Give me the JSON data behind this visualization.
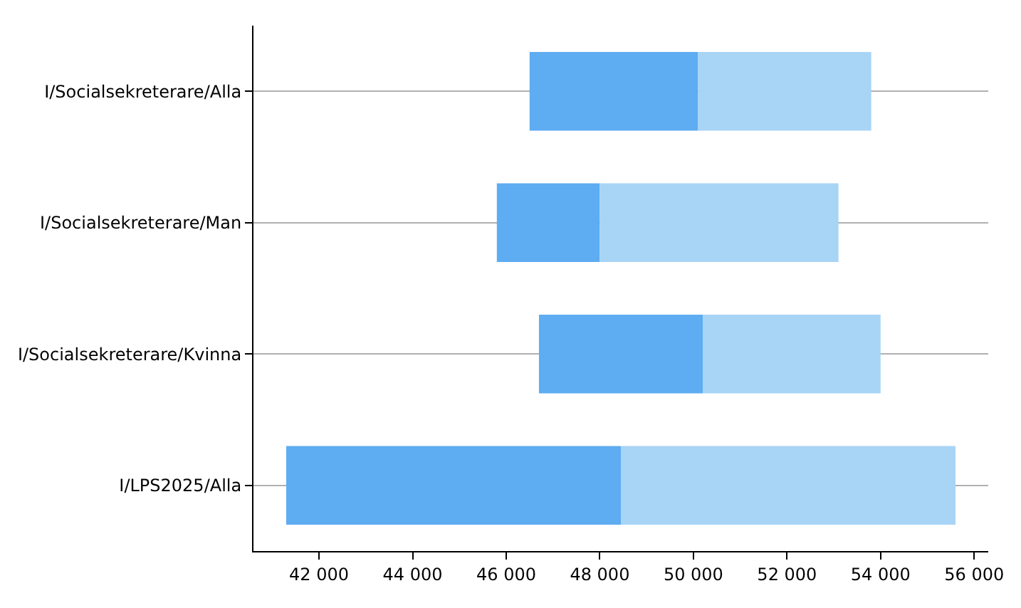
{
  "chart_data": {
    "type": "bar",
    "orientation": "horizontal",
    "categories": [
      "I/Socialsekreterare/Alla",
      "I/Socialsekreterare/Man",
      "I/Socialsekreterare/Kvinna",
      "I/LPS2025/Alla"
    ],
    "series": [
      {
        "color": "#5eacf1",
        "base": [
          46500,
          45800,
          46700,
          41300
        ],
        "values": [
          3600,
          2200,
          3500,
          7150
        ]
      },
      {
        "color": "#a8d4f6",
        "base": [
          50100,
          48000,
          50200,
          48450
        ],
        "values": [
          3700,
          5100,
          3800,
          7150
        ]
      }
    ],
    "xlim": [
      40600,
      56300
    ],
    "xticks": [
      {
        "value": 42000,
        "label": "42 000"
      },
      {
        "value": 44000,
        "label": "44 000"
      },
      {
        "value": 46000,
        "label": "46 000"
      },
      {
        "value": 48000,
        "label": "48 000"
      },
      {
        "value": 50000,
        "label": "50 000"
      },
      {
        "value": 52000,
        "label": "52 000"
      },
      {
        "value": 54000,
        "label": "54 000"
      },
      {
        "value": 56000,
        "label": "56 000"
      }
    ],
    "grid": "y"
  }
}
